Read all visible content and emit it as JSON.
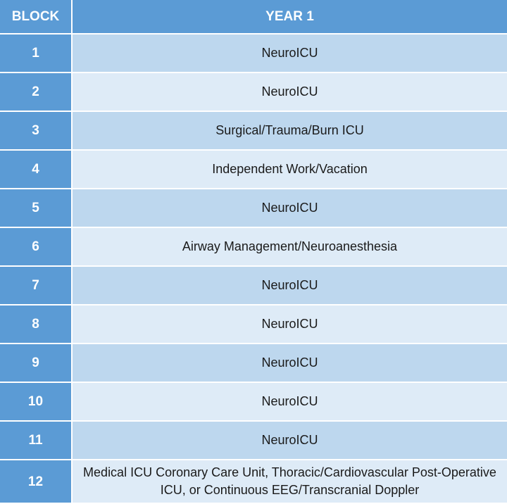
{
  "table": {
    "headers": {
      "block": "BLOCK",
      "year": "YEAR 1"
    },
    "rows": [
      {
        "block": "1",
        "rotation": "NeuroICU"
      },
      {
        "block": "2",
        "rotation": "NeuroICU"
      },
      {
        "block": "3",
        "rotation": "Surgical/Trauma/Burn ICU"
      },
      {
        "block": "4",
        "rotation": "Independent Work/Vacation"
      },
      {
        "block": "5",
        "rotation": "NeuroICU"
      },
      {
        "block": "6",
        "rotation": "Airway Management/Neuroanesthesia"
      },
      {
        "block": "7",
        "rotation": "NeuroICU"
      },
      {
        "block": "8",
        "rotation": "NeuroICU"
      },
      {
        "block": "9",
        "rotation": "NeuroICU"
      },
      {
        "block": "10",
        "rotation": "NeuroICU"
      },
      {
        "block": "11",
        "rotation": "NeuroICU"
      },
      {
        "block": "12",
        "rotation": "Medical ICU Coronary Care Unit, Thoracic/Cardiovascular Post-Operative ICU, or Continuous EEG/Transcranial Doppler"
      }
    ]
  },
  "colors": {
    "header_bg": "#5b9bd5",
    "row_odd_bg": "#bdd7ee",
    "row_even_bg": "#deebf7",
    "divider": "#ffffff"
  }
}
